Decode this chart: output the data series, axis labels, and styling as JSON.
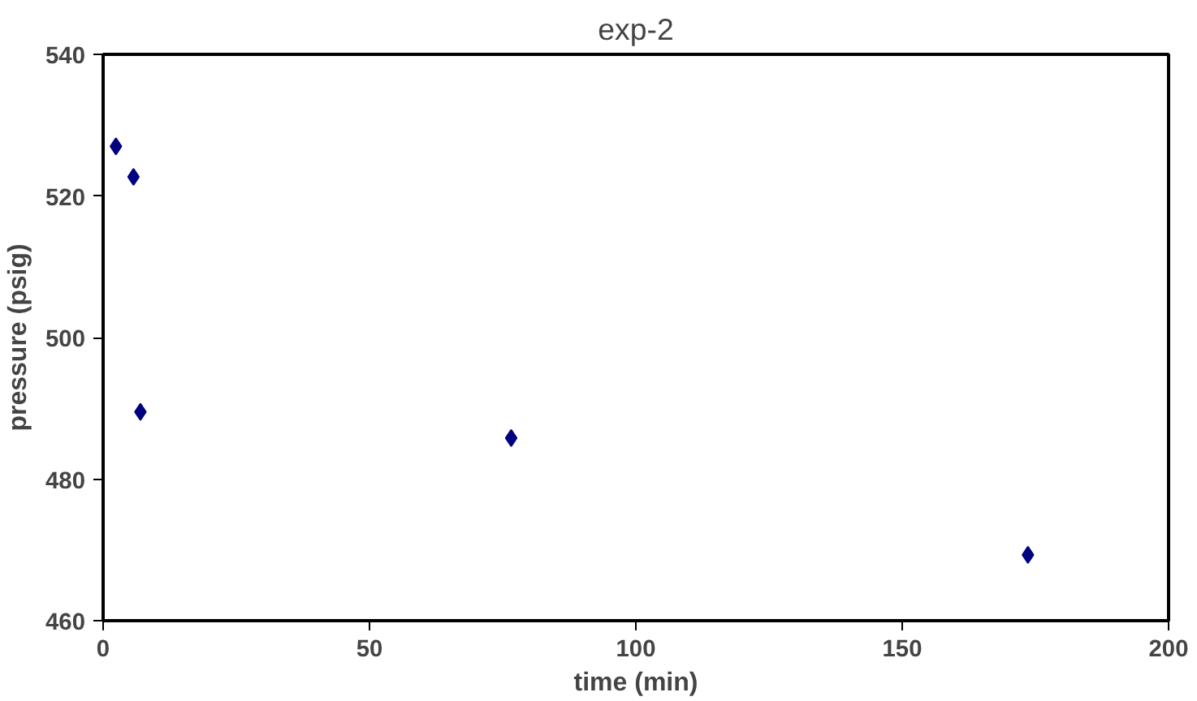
{
  "chart_data": {
    "type": "scatter",
    "title": "exp-2",
    "xlabel": "time (min)",
    "ylabel": "pressure (psig)",
    "x": [
      2.4,
      5.7,
      7,
      76.6,
      173.6
    ],
    "series": [
      {
        "color": "#000080",
        "values": [
          527,
          522.7,
          489.5,
          485.8,
          469.3
        ]
      }
    ],
    "xlim": [
      0,
      200
    ],
    "ylim": [
      460,
      540
    ],
    "xticks": [
      0,
      50,
      100,
      150,
      200
    ],
    "yticks": [
      460,
      480,
      500,
      520,
      540
    ],
    "grid": false,
    "marker": "diamond"
  }
}
